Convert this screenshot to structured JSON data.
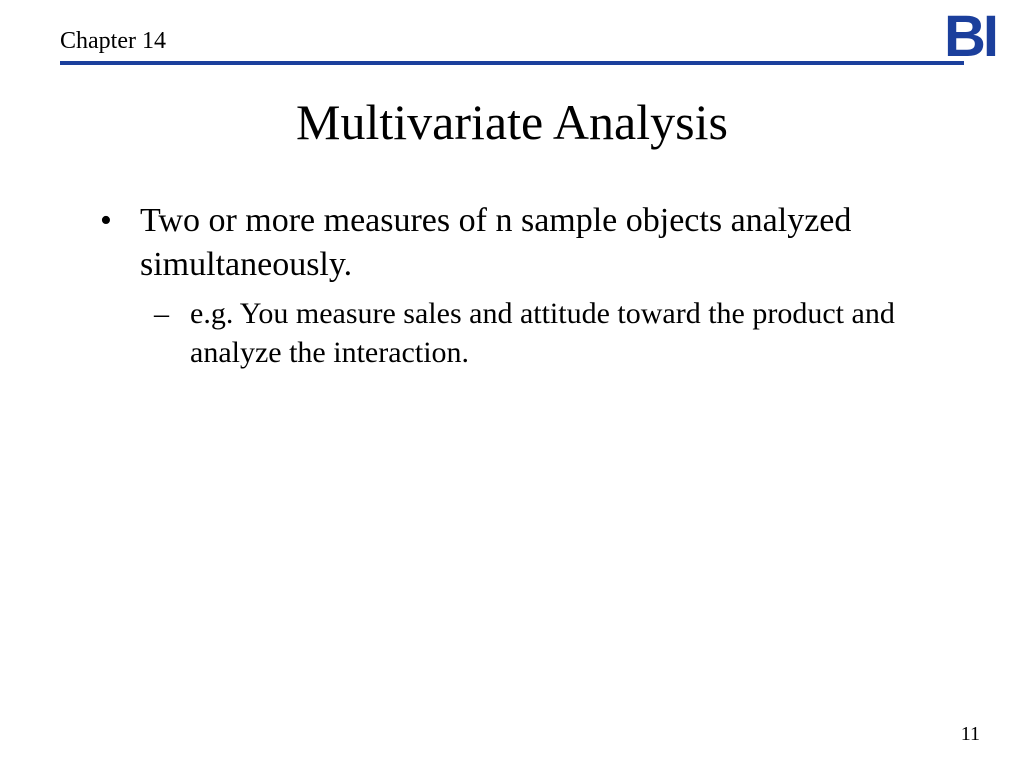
{
  "header": {
    "chapter": "Chapter 14",
    "logo_text": "BI",
    "rule_color": "#1b3f9c",
    "logo_color": "#1b3f9c"
  },
  "title": "Multivariate Analysis",
  "bullets": {
    "main": "Two or more measures of n sample objects analyzed simultaneously.",
    "sub": "e.g. You measure sales and attitude toward the product and analyze the interaction."
  },
  "page_number": "11",
  "fonts": {
    "body_family": "Times New Roman",
    "title_size_pt": 50,
    "body_size_pt": 34,
    "sub_size_pt": 30,
    "chapter_size_pt": 24,
    "pagenum_size_pt": 20
  },
  "colors": {
    "background": "#ffffff",
    "text": "#000000",
    "accent": "#1b3f9c"
  }
}
